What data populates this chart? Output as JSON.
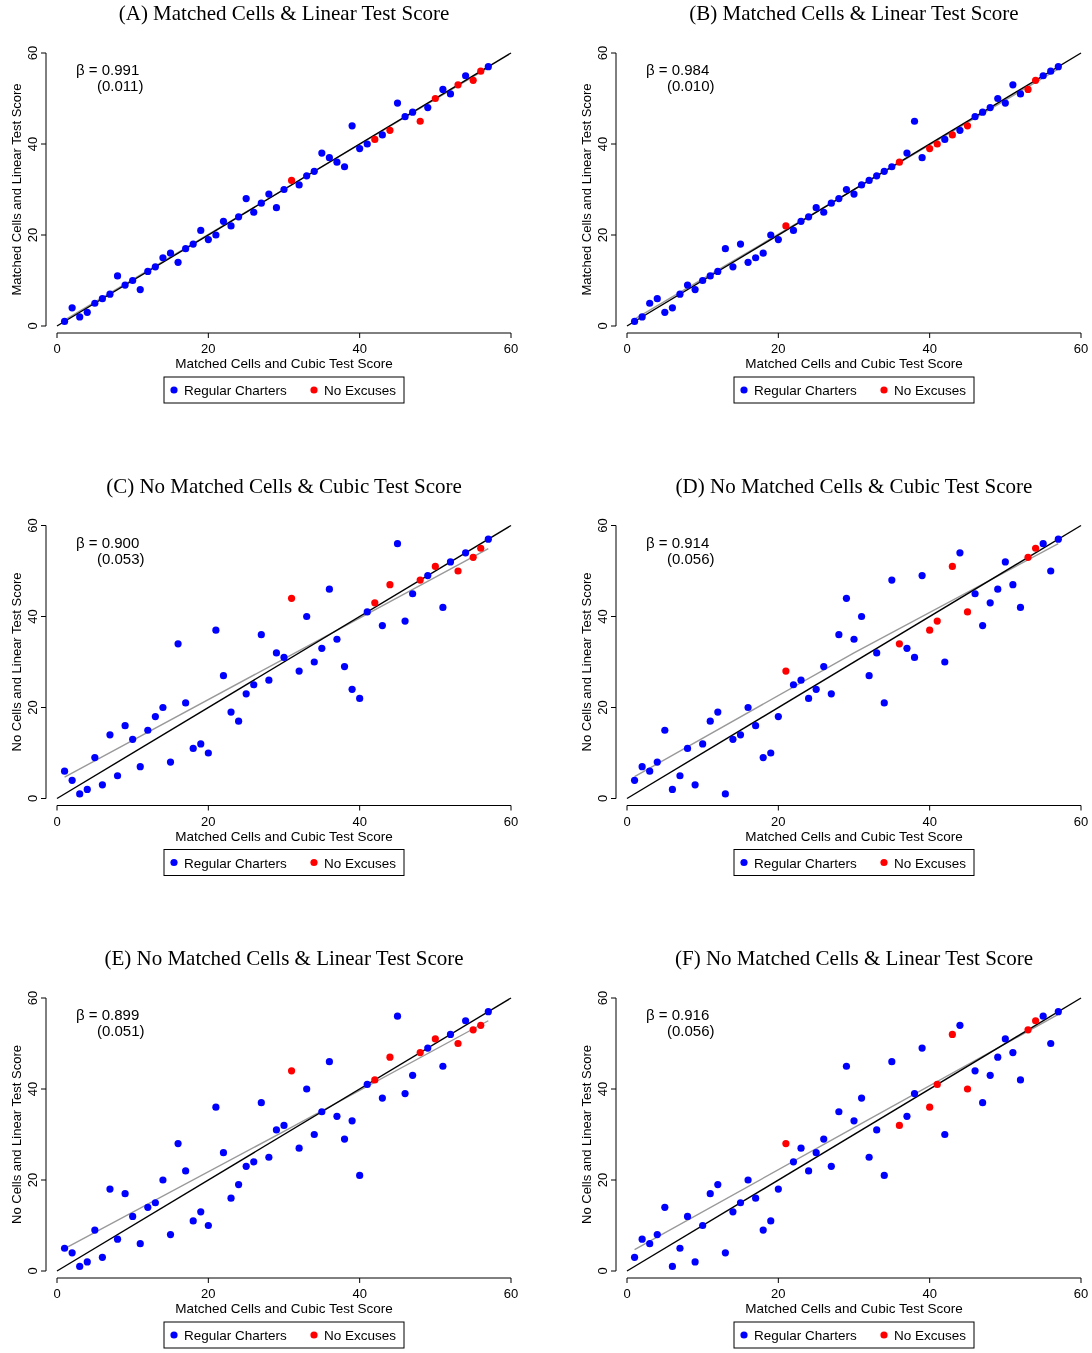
{
  "chart_data": [
    {
      "type": "scatter",
      "title": "(A) Matched Cells & Linear Test Score",
      "xlabel": "Matched Cells and Cubic Test Score",
      "ylabel": "Matched Cells and Linear Test Score",
      "xlim": [
        0,
        60
      ],
      "ylim": [
        0,
        60
      ],
      "xticks": [
        0,
        20,
        40,
        60
      ],
      "yticks": [
        0,
        20,
        40,
        60
      ],
      "annotations": [
        "β = 0.991",
        "(0.011)"
      ],
      "legend": "bottom",
      "marker": "circle",
      "series": [
        {
          "name": "Regular Charters",
          "color": "#0000ff",
          "x": [
            1,
            2,
            3,
            4,
            5,
            6,
            7,
            8,
            9,
            10,
            11,
            12,
            13,
            14,
            15,
            16,
            17,
            18,
            19,
            20,
            21,
            22,
            23,
            24,
            25,
            26,
            27,
            28,
            29,
            30,
            32,
            33,
            34,
            35,
            36,
            37,
            38,
            39,
            40,
            41,
            43,
            45,
            46,
            47,
            49,
            51,
            52,
            54,
            57
          ],
          "values": [
            1,
            4,
            2,
            3,
            5,
            6,
            7,
            11,
            9,
            10,
            8,
            12,
            13,
            15,
            16,
            14,
            17,
            18,
            21,
            19,
            20,
            23,
            22,
            24,
            28,
            25,
            27,
            29,
            26,
            30,
            31,
            33,
            34,
            38,
            37,
            36,
            35,
            44,
            39,
            40,
            42,
            49,
            46,
            47,
            48,
            52,
            51,
            55,
            57
          ]
        },
        {
          "name": "No Excuses",
          "color": "#ff0000",
          "x": [
            31,
            42,
            44,
            48,
            50,
            53,
            55,
            56
          ],
          "values": [
            32,
            41,
            43,
            45,
            50,
            53,
            54,
            56
          ]
        },
        {
          "type": "line",
          "marker": "none",
          "color": "#999999",
          "x": [
            1,
            57
          ],
          "values": [
            1.3,
            56.8
          ]
        },
        {
          "type": "line",
          "marker": "none",
          "color": "#000000",
          "x": [
            0,
            60
          ],
          "values": [
            0,
            60
          ]
        }
      ]
    },
    {
      "type": "scatter",
      "title": "(B) Matched Cells & Linear Test Score",
      "xlabel": "Matched Cells and Cubic Test Score",
      "ylabel": "Matched Cells and Linear Test Score",
      "xlim": [
        0,
        60
      ],
      "ylim": [
        0,
        60
      ],
      "xticks": [
        0,
        20,
        40,
        60
      ],
      "yticks": [
        0,
        20,
        40,
        60
      ],
      "annotations": [
        "β = 0.984",
        "(0.010)"
      ],
      "legend": "bottom",
      "marker": "circle",
      "series": [
        {
          "name": "Regular Charters",
          "color": "#0000ff",
          "x": [
            1,
            2,
            3,
            4,
            5,
            6,
            7,
            8,
            9,
            10,
            11,
            12,
            13,
            14,
            15,
            16,
            17,
            18,
            19,
            20,
            22,
            23,
            24,
            25,
            26,
            27,
            28,
            29,
            30,
            31,
            32,
            33,
            34,
            35,
            37,
            38,
            39,
            42,
            44,
            46,
            47,
            48,
            49,
            50,
            51,
            52,
            55,
            56,
            57
          ],
          "values": [
            1,
            2,
            5,
            6,
            3,
            4,
            7,
            9,
            8,
            10,
            11,
            12,
            17,
            13,
            18,
            14,
            15,
            16,
            20,
            19,
            21,
            23,
            24,
            26,
            25,
            27,
            28,
            30,
            29,
            31,
            32,
            33,
            34,
            35,
            38,
            45,
            37,
            41,
            43,
            46,
            47,
            48,
            50,
            49,
            53,
            51,
            55,
            56,
            57
          ]
        },
        {
          "name": "No Excuses",
          "color": "#ff0000",
          "x": [
            21,
            36,
            40,
            41,
            43,
            45,
            53,
            54
          ],
          "values": [
            22,
            36,
            39,
            40,
            42,
            44,
            52,
            54
          ]
        },
        {
          "type": "line",
          "marker": "none",
          "color": "#999999",
          "x": [
            1,
            57
          ],
          "values": [
            1.5,
            56.5
          ]
        },
        {
          "type": "line",
          "marker": "none",
          "color": "#000000",
          "x": [
            0,
            60
          ],
          "values": [
            0,
            60
          ]
        }
      ]
    },
    {
      "type": "scatter",
      "title": "(C) No Matched Cells & Cubic Test Score",
      "xlabel": "Matched Cells and Cubic Test Score",
      "ylabel": "No Cells and Linear Test Score",
      "xlim": [
        0,
        60
      ],
      "ylim": [
        0,
        60
      ],
      "xticks": [
        0,
        20,
        40,
        60
      ],
      "yticks": [
        0,
        20,
        40,
        60
      ],
      "annotations": [
        "β = 0.900",
        "(0.053)"
      ],
      "legend": "bottom",
      "marker": "circle",
      "series": [
        {
          "name": "Regular Charters",
          "color": "#0000ff",
          "x": [
            1,
            2,
            3,
            4,
            5,
            6,
            7,
            8,
            9,
            10,
            11,
            12,
            13,
            14,
            15,
            16,
            17,
            18,
            19,
            20,
            21,
            22,
            23,
            24,
            25,
            26,
            27,
            28,
            29,
            30,
            32,
            33,
            34,
            35,
            36,
            37,
            38,
            39,
            40,
            41,
            43,
            45,
            46,
            47,
            49,
            51,
            52,
            54,
            57
          ],
          "values": [
            6,
            4,
            1,
            2,
            9,
            3,
            14,
            5,
            16,
            13,
            7,
            15,
            18,
            20,
            8,
            34,
            21,
            11,
            12,
            10,
            37,
            27,
            19,
            17,
            23,
            25,
            36,
            26,
            32,
            31,
            28,
            40,
            30,
            33,
            46,
            35,
            29,
            24,
            22,
            41,
            38,
            56,
            39,
            45,
            49,
            42,
            52,
            54,
            57
          ]
        },
        {
          "name": "No Excuses",
          "color": "#ff0000",
          "x": [
            31,
            42,
            44,
            48,
            50,
            53,
            55,
            56
          ],
          "values": [
            44,
            43,
            47,
            48,
            51,
            50,
            53,
            55
          ]
        },
        {
          "type": "line",
          "marker": "none",
          "color": "#999999",
          "x": [
            1,
            30,
            57
          ],
          "values": [
            4.7,
            30.7,
            54.9
          ]
        },
        {
          "type": "line",
          "marker": "none",
          "color": "#000000",
          "x": [
            0,
            60
          ],
          "values": [
            0,
            60
          ]
        }
      ]
    },
    {
      "type": "scatter",
      "title": "(D) No Matched Cells & Cubic Test Score",
      "xlabel": "Matched Cells and Cubic Test Score",
      "ylabel": "No Cells and Linear Test Score",
      "xlim": [
        0,
        60
      ],
      "ylim": [
        0,
        60
      ],
      "xticks": [
        0,
        20,
        40,
        60
      ],
      "yticks": [
        0,
        20,
        40,
        60
      ],
      "annotations": [
        "β = 0.914",
        "(0.056)"
      ],
      "legend": "bottom",
      "marker": "circle",
      "series": [
        {
          "name": "Regular Charters",
          "color": "#0000ff",
          "x": [
            1,
            2,
            3,
            4,
            5,
            6,
            7,
            8,
            9,
            10,
            11,
            12,
            13,
            14,
            15,
            16,
            17,
            18,
            19,
            20,
            22,
            23,
            24,
            25,
            26,
            27,
            28,
            29,
            30,
            31,
            32,
            33,
            34,
            35,
            37,
            38,
            39,
            42,
            44,
            46,
            47,
            48,
            49,
            50,
            51,
            52,
            55,
            56,
            57
          ],
          "values": [
            4,
            7,
            6,
            8,
            15,
            2,
            5,
            11,
            3,
            12,
            17,
            19,
            1,
            13,
            14,
            20,
            16,
            9,
            10,
            18,
            25,
            26,
            22,
            24,
            29,
            23,
            36,
            44,
            35,
            40,
            27,
            32,
            21,
            48,
            33,
            31,
            49,
            30,
            54,
            45,
            38,
            43,
            46,
            52,
            47,
            42,
            56,
            50,
            57
          ]
        },
        {
          "name": "No Excuses",
          "color": "#ff0000",
          "x": [
            21,
            36,
            40,
            41,
            43,
            45,
            53,
            54
          ],
          "values": [
            28,
            34,
            37,
            39,
            51,
            41,
            53,
            55
          ]
        },
        {
          "type": "line",
          "marker": "none",
          "color": "#999999",
          "x": [
            1,
            30,
            57
          ],
          "values": [
            4.8,
            32,
            56
          ]
        },
        {
          "type": "line",
          "marker": "none",
          "color": "#000000",
          "x": [
            0,
            60
          ],
          "values": [
            0,
            60
          ]
        }
      ]
    },
    {
      "type": "scatter",
      "title": "(E) No Matched Cells & Linear Test Score",
      "xlabel": "Matched Cells and Cubic Test Score",
      "ylabel": "No Cells and Linear Test Score",
      "xlim": [
        0,
        60
      ],
      "ylim": [
        0,
        60
      ],
      "xticks": [
        0,
        20,
        40,
        60
      ],
      "yticks": [
        0,
        20,
        40,
        60
      ],
      "annotations": [
        "β = 0.899",
        "(0.051)"
      ],
      "legend": "bottom",
      "marker": "circle",
      "series": [
        {
          "name": "Regular Charters",
          "color": "#0000ff",
          "x": [
            1,
            2,
            3,
            4,
            5,
            6,
            7,
            8,
            9,
            10,
            11,
            12,
            13,
            14,
            15,
            16,
            17,
            18,
            19,
            20,
            21,
            22,
            23,
            24,
            25,
            26,
            27,
            28,
            29,
            30,
            32,
            33,
            34,
            35,
            36,
            37,
            38,
            39,
            40,
            41,
            43,
            45,
            46,
            47,
            49,
            51,
            52,
            54,
            57
          ],
          "values": [
            5,
            4,
            1,
            2,
            9,
            3,
            18,
            7,
            17,
            12,
            6,
            14,
            15,
            20,
            8,
            28,
            22,
            11,
            13,
            10,
            36,
            26,
            16,
            19,
            23,
            24,
            37,
            25,
            31,
            32,
            27,
            40,
            30,
            35,
            46,
            34,
            29,
            33,
            21,
            41,
            38,
            56,
            39,
            43,
            49,
            45,
            52,
            55,
            57
          ]
        },
        {
          "name": "No Excuses",
          "color": "#ff0000",
          "x": [
            31,
            42,
            44,
            48,
            50,
            53,
            55,
            56
          ],
          "values": [
            44,
            42,
            47,
            48,
            51,
            50,
            53,
            54
          ]
        },
        {
          "type": "line",
          "marker": "none",
          "color": "#999999",
          "x": [
            1,
            30,
            57
          ],
          "values": [
            4.9,
            30.7,
            55
          ]
        },
        {
          "type": "line",
          "marker": "none",
          "color": "#000000",
          "x": [
            0,
            60
          ],
          "values": [
            0,
            60
          ]
        }
      ]
    },
    {
      "type": "scatter",
      "title": "(F) No Matched Cells & Linear Test Score",
      "xlabel": "Matched Cells and Cubic Test Score",
      "ylabel": "No Cells and Linear Test Score",
      "xlim": [
        0,
        60
      ],
      "ylim": [
        0,
        60
      ],
      "xticks": [
        0,
        20,
        40,
        60
      ],
      "yticks": [
        0,
        20,
        40,
        60
      ],
      "annotations": [
        "β = 0.916",
        "(0.056)"
      ],
      "legend": "bottom",
      "marker": "circle",
      "series": [
        {
          "name": "Regular Charters",
          "color": "#0000ff",
          "x": [
            1,
            2,
            3,
            4,
            5,
            6,
            7,
            8,
            9,
            10,
            11,
            12,
            13,
            14,
            15,
            16,
            17,
            18,
            19,
            20,
            22,
            23,
            24,
            25,
            26,
            27,
            28,
            29,
            30,
            31,
            32,
            33,
            34,
            35,
            37,
            38,
            39,
            42,
            44,
            46,
            47,
            48,
            49,
            50,
            51,
            52,
            55,
            56,
            57
          ],
          "values": [
            3,
            7,
            6,
            8,
            14,
            1,
            5,
            12,
            2,
            10,
            17,
            19,
            4,
            13,
            15,
            20,
            16,
            9,
            11,
            18,
            24,
            27,
            22,
            26,
            29,
            23,
            35,
            45,
            33,
            38,
            25,
            31,
            21,
            46,
            34,
            39,
            49,
            30,
            54,
            44,
            37,
            43,
            47,
            51,
            48,
            42,
            56,
            50,
            57
          ]
        },
        {
          "name": "No Excuses",
          "color": "#ff0000",
          "x": [
            21,
            36,
            40,
            41,
            43,
            45,
            53,
            54
          ],
          "values": [
            28,
            32,
            36,
            41,
            52,
            40,
            53,
            55
          ]
        },
        {
          "type": "line",
          "marker": "none",
          "color": "#999999",
          "x": [
            1,
            30,
            57
          ],
          "values": [
            4.7,
            31.5,
            56.4
          ]
        },
        {
          "type": "line",
          "marker": "none",
          "color": "#000000",
          "x": [
            0,
            60
          ],
          "values": [
            0,
            60
          ]
        }
      ]
    }
  ]
}
